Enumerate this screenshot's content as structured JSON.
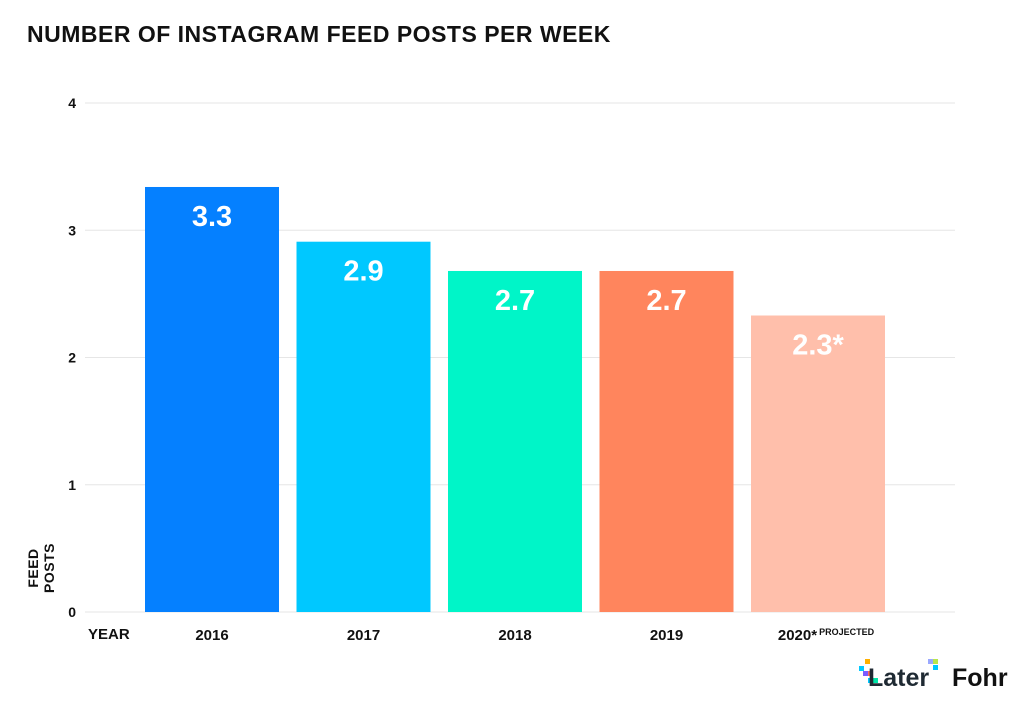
{
  "chart_data": {
    "type": "bar",
    "title": "NUMBER OF INSTAGRAM FEED POSTS PER WEEK",
    "xlabel": "YEAR",
    "ylabel": "FEED POSTS",
    "categories": [
      "2016",
      "2017",
      "2018",
      "2019",
      "2020"
    ],
    "category_suffix": [
      "",
      "",
      "",
      "",
      "*PROJECTED"
    ],
    "values": [
      3.34,
      2.91,
      2.68,
      2.68,
      2.33
    ],
    "data_labels": [
      "3.3",
      "2.9",
      "2.7",
      "2.7",
      "2.3*"
    ],
    "colors": [
      "#0580FF",
      "#00C8FF",
      "#00F5C8",
      "#FF855D",
      "#FFBFAB"
    ],
    "ylim": [
      0,
      4
    ],
    "yticks": [
      0,
      1,
      2,
      3,
      4
    ],
    "grid": true,
    "legend": "none"
  },
  "logos": {
    "later": "Later",
    "fohr": "Fohr"
  }
}
